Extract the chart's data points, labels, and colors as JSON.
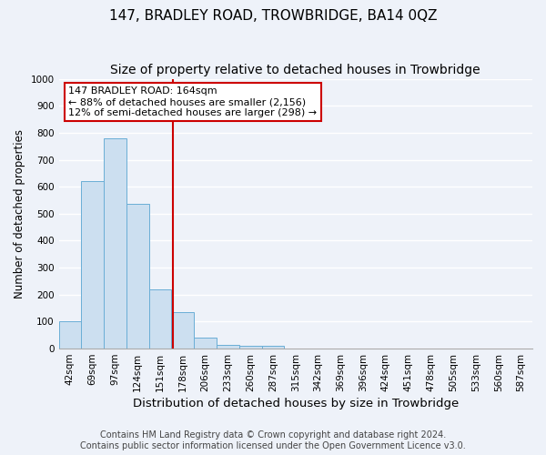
{
  "title": "147, BRADLEY ROAD, TROWBRIDGE, BA14 0QZ",
  "subtitle": "Size of property relative to detached houses in Trowbridge",
  "xlabel": "Distribution of detached houses by size in Trowbridge",
  "ylabel": "Number of detached properties",
  "bar_labels": [
    "42sqm",
    "69sqm",
    "97sqm",
    "124sqm",
    "151sqm",
    "178sqm",
    "206sqm",
    "233sqm",
    "260sqm",
    "287sqm",
    "315sqm",
    "342sqm",
    "369sqm",
    "396sqm",
    "424sqm",
    "451sqm",
    "478sqm",
    "505sqm",
    "533sqm",
    "560sqm",
    "587sqm"
  ],
  "bar_values": [
    100,
    620,
    780,
    535,
    220,
    135,
    40,
    15,
    10,
    10,
    0,
    0,
    0,
    0,
    0,
    0,
    0,
    0,
    0,
    0,
    0
  ],
  "bar_color": "#ccdff0",
  "bar_edge_color": "#6aaed6",
  "background_color": "#eef2f9",
  "vline_x_index": 4.55,
  "vline_color": "#cc0000",
  "annotation_line1": "147 BRADLEY ROAD: 164sqm",
  "annotation_line2": "← 88% of detached houses are smaller (2,156)",
  "annotation_line3": "12% of semi-detached houses are larger (298) →",
  "annotation_box_color": "#ffffff",
  "annotation_edge_color": "#cc0000",
  "ylim": [
    0,
    1000
  ],
  "yticks": [
    0,
    100,
    200,
    300,
    400,
    500,
    600,
    700,
    800,
    900,
    1000
  ],
  "footer_line1": "Contains HM Land Registry data © Crown copyright and database right 2024.",
  "footer_line2": "Contains public sector information licensed under the Open Government Licence v3.0.",
  "grid_color": "#ffffff",
  "title_fontsize": 11,
  "subtitle_fontsize": 10,
  "xlabel_fontsize": 9.5,
  "ylabel_fontsize": 8.5,
  "tick_fontsize": 7.5,
  "annotation_fontsize": 8,
  "footer_fontsize": 7
}
